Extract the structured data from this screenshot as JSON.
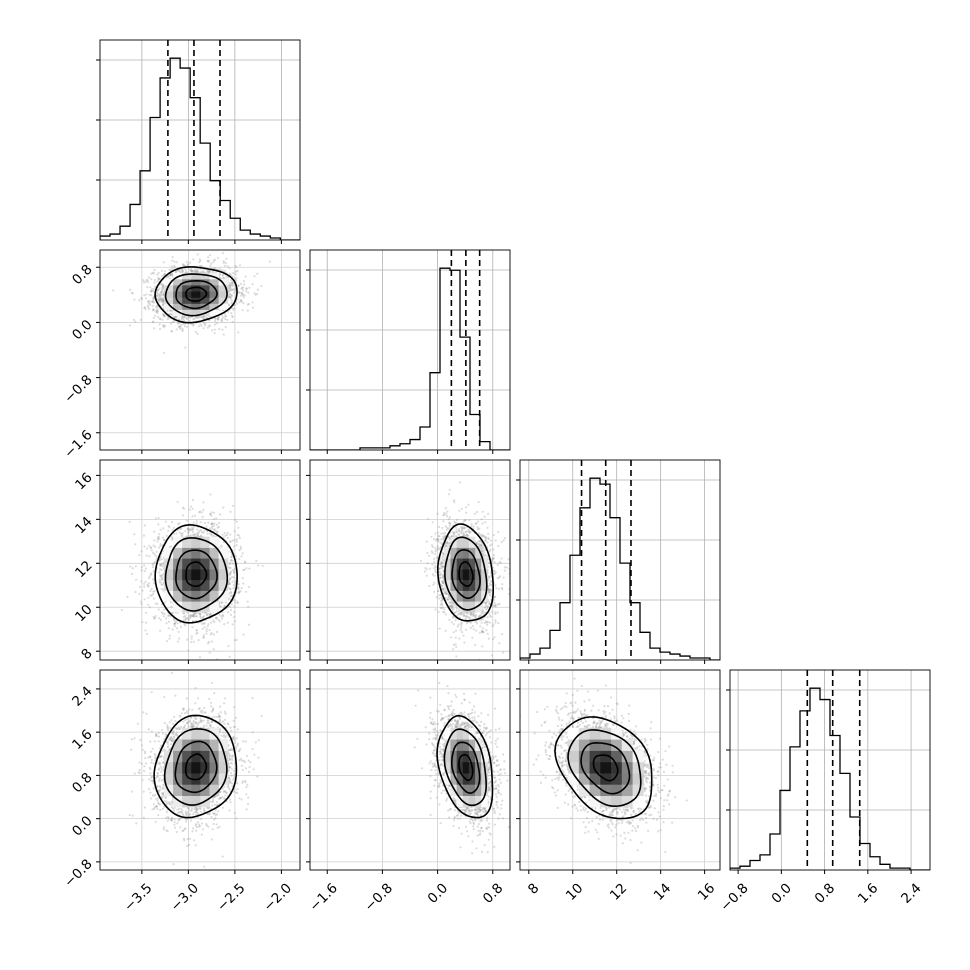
{
  "chart_data": {
    "type": "corner",
    "variables": [
      {
        "range": [
          -3.95,
          -1.8
        ],
        "ticks": [
          -3.5,
          -3.0,
          -2.5,
          -2.0
        ],
        "tick_labels": [
          "−3.5",
          "−3.0",
          "−2.5",
          "−2.0"
        ],
        "quantiles": [
          -3.22,
          -2.94,
          -2.66
        ],
        "center": -2.92,
        "sd": 0.22
      },
      {
        "range": [
          -1.85,
          1.05
        ],
        "ticks": [
          -1.6,
          -0.8,
          0.0,
          0.8
        ],
        "tick_labels": [
          "−1.6",
          "−0.8",
          "0.0",
          "0.8"
        ],
        "quantiles": [
          0.2,
          0.41,
          0.61
        ],
        "center": 0.41,
        "sd": 0.2
      },
      {
        "range": [
          7.6,
          16.7
        ],
        "ticks": [
          8,
          10,
          12,
          14,
          16
        ],
        "tick_labels": [
          "8",
          "10",
          "12",
          "14",
          "16"
        ],
        "quantiles": [
          10.4,
          11.5,
          12.65
        ],
        "center": 11.5,
        "sd": 1.1
      },
      {
        "range": [
          -0.95,
          2.75
        ],
        "ticks": [
          -0.8,
          0.0,
          0.8,
          1.6,
          2.4
        ],
        "tick_labels": [
          "−0.8",
          "0.0",
          "0.8",
          "1.6",
          "2.4"
        ],
        "quantiles": [
          0.48,
          0.95,
          1.45
        ],
        "center": 0.95,
        "sd": 0.47
      }
    ],
    "histograms": [
      {
        "var": 0,
        "edges_start": -3.95,
        "bin_width": 0.1077,
        "counts": [
          2,
          3,
          7,
          18,
          35,
          62,
          82,
          92,
          87,
          72,
          49,
          30,
          20,
          11,
          5,
          3,
          2,
          1,
          0,
          0
        ]
      },
      {
        "var": 1,
        "edges_start": -1.85,
        "bin_width": 0.145,
        "counts": [
          0,
          0,
          0,
          0,
          0,
          1,
          1,
          1,
          2,
          3,
          5,
          11,
          37,
          87,
          86,
          54,
          17,
          4,
          0,
          0
        ]
      },
      {
        "var": 2,
        "edges_start": 7.6,
        "bin_width": 0.455,
        "counts": [
          1,
          3,
          6,
          15,
          29,
          53,
          77,
          92,
          89,
          72,
          49,
          29,
          14,
          6,
          4,
          3,
          2,
          1,
          1,
          0
        ]
      },
      {
        "var": 3,
        "edges_start": -0.95,
        "bin_width": 0.185,
        "counts": [
          1,
          2,
          5,
          8,
          19,
          42,
          65,
          84,
          96,
          90,
          71,
          51,
          28,
          14,
          7,
          3,
          1,
          1,
          0,
          0
        ]
      }
    ],
    "correlations": {
      "1,0": 0.05,
      "2,0": 0.0,
      "2,1": -0.15,
      "3,0": 0.1,
      "3,1": -0.3,
      "3,2": -0.3
    },
    "histograms_plot_type": "step",
    "scatter_points_per_panel": 2500,
    "contour_levels": [
      "0.5 sigma",
      "1 sigma",
      "1.5 sigma",
      "2 sigma"
    ],
    "grid": true,
    "title": "",
    "xlabel": "",
    "ylabel": ""
  }
}
